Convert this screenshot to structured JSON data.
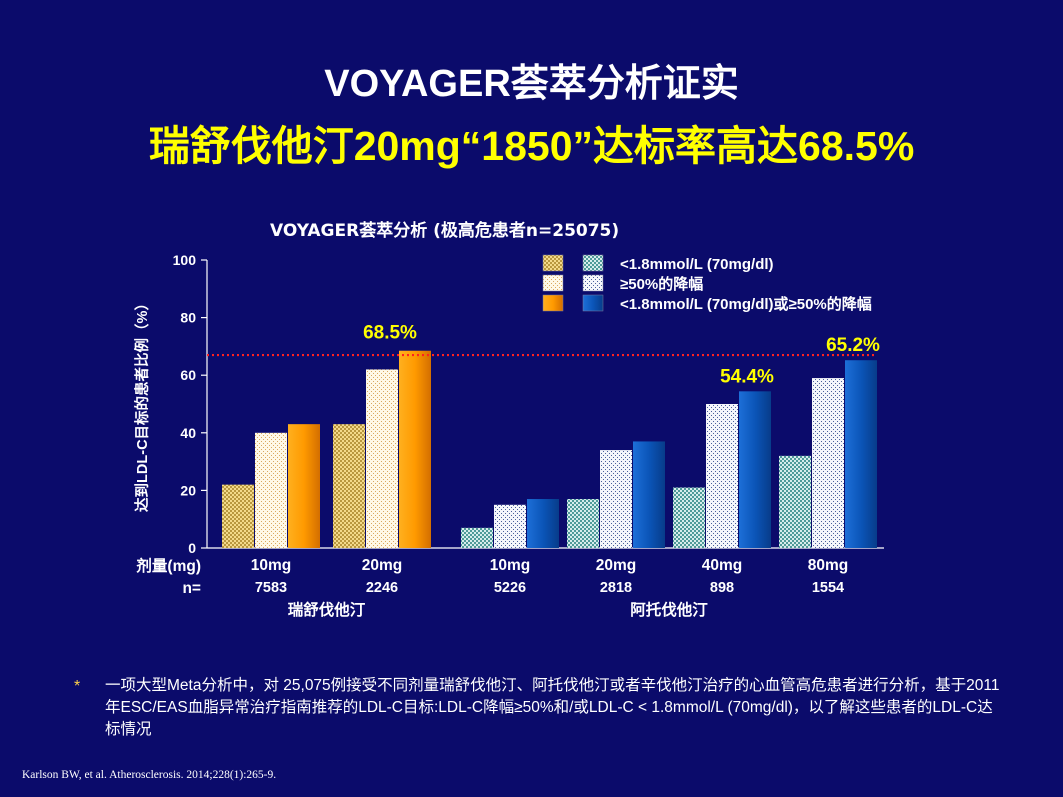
{
  "slide": {
    "title_line1": "VOYAGER荟萃分析证实",
    "title_line2": "瑞舒伐他汀20mg“1850”达标率高达68.5%",
    "footnote_marker": "*",
    "footnote": "一项大型Meta分析中，对 25,075例接受不同剂量瑞舒伐他汀、阿托伐他汀或者辛伐他汀治疗的心血管高危患者进行分析，基于2011年ESC/EAS血脂异常治疗指南推荐的LDL-C目标:LDL-C降幅≥50%和/或LDL-C < 1.8mmol/L (70mg/dl)，以了解这些患者的LDL-C达标情况",
    "citation": "Karlson BW, et al. Atherosclerosis. 2014;228(1):265-9."
  },
  "chart_data": {
    "type": "bar",
    "title": "VOYAGER荟萃分析 (极高危患者n=25075)",
    "ylabel": "达到LDL-C目标的患者比例（%）",
    "ylim": [
      0,
      100
    ],
    "yticks": [
      0,
      20,
      40,
      60,
      80,
      100
    ],
    "row_labels": {
      "dose": "剂量(mg)",
      "n": "n="
    },
    "reference_line": {
      "value": 67,
      "color": "#ff2020"
    },
    "legend": {
      "placement": "top-right",
      "entries": [
        "<1.8mmol/L (70mg/dl)",
        "≥50%的降幅",
        "<1.8mmol/L (70mg/dl)或≥50%的降幅"
      ]
    },
    "drugs": [
      {
        "name": "瑞舒伐他汀",
        "palette": "orange"
      },
      {
        "name": "阿托伐他汀",
        "palette": "blue"
      }
    ],
    "groups": [
      {
        "drug": 0,
        "dose": "10mg",
        "n": "7583",
        "values": [
          22,
          40,
          43
        ],
        "label": ""
      },
      {
        "drug": 0,
        "dose": "20mg",
        "n": "2246",
        "values": [
          43,
          62,
          68.5
        ],
        "label": "68.5%"
      },
      {
        "drug": 1,
        "dose": "10mg",
        "n": "5226",
        "values": [
          7,
          15,
          17
        ],
        "label": ""
      },
      {
        "drug": 1,
        "dose": "20mg",
        "n": "2818",
        "values": [
          17,
          34,
          37
        ],
        "label": ""
      },
      {
        "drug": 1,
        "dose": "40mg",
        "n": "898",
        "values": [
          21,
          50,
          54.4
        ],
        "label": "54.4%"
      },
      {
        "drug": 1,
        "dose": "80mg",
        "n": "1554",
        "values": [
          32,
          59,
          65.2
        ],
        "label": "65.2%"
      }
    ]
  }
}
